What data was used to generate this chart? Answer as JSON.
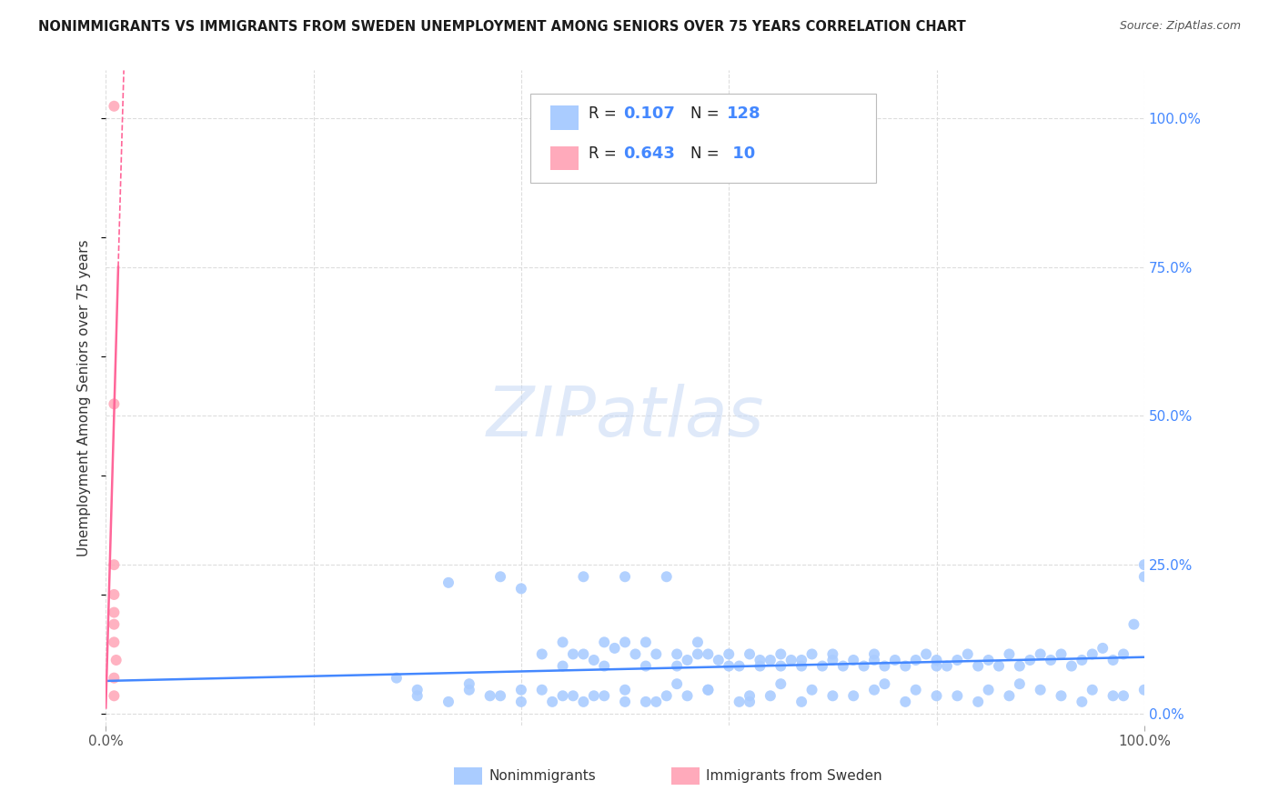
{
  "title": "NONIMMIGRANTS VS IMMIGRANTS FROM SWEDEN UNEMPLOYMENT AMONG SENIORS OVER 75 YEARS CORRELATION CHART",
  "source": "Source: ZipAtlas.com",
  "ylabel": "Unemployment Among Seniors over 75 years",
  "xlim": [
    0.0,
    1.0
  ],
  "ylim": [
    -0.02,
    1.08
  ],
  "ytick_positions_right": [
    0.0,
    0.25,
    0.5,
    0.75,
    1.0
  ],
  "ytick_labels_right": [
    "0.0%",
    "25.0%",
    "50.0%",
    "75.0%",
    "100.0%"
  ],
  "grid_color": "#dddddd",
  "nonimmigrant_color": "#aaccff",
  "immigrant_color": "#ffaabb",
  "nonimmigrant_R": 0.107,
  "nonimmigrant_N": 128,
  "immigrant_R": 0.643,
  "immigrant_N": 10,
  "trend_nonimmigrant_color": "#4488ff",
  "trend_immigrant_color": "#ff6699",
  "watermark": "ZIPatlas",
  "legend_label_nonimmigrant": "Nonimmigrants",
  "legend_label_immigrant": "Immigrants from Sweden",
  "ni_trend_slope": 0.04,
  "ni_trend_intercept": 0.055,
  "nonimmigrant_scatter_x": [
    0.28,
    0.3,
    0.33,
    0.35,
    0.38,
    0.4,
    0.42,
    0.44,
    0.44,
    0.45,
    0.46,
    0.46,
    0.47,
    0.48,
    0.48,
    0.49,
    0.5,
    0.5,
    0.51,
    0.52,
    0.52,
    0.53,
    0.54,
    0.55,
    0.55,
    0.56,
    0.57,
    0.57,
    0.58,
    0.59,
    0.6,
    0.6,
    0.61,
    0.62,
    0.63,
    0.63,
    0.64,
    0.65,
    0.65,
    0.66,
    0.67,
    0.67,
    0.68,
    0.69,
    0.7,
    0.7,
    0.71,
    0.72,
    0.73,
    0.74,
    0.74,
    0.75,
    0.76,
    0.77,
    0.78,
    0.79,
    0.8,
    0.8,
    0.81,
    0.82,
    0.83,
    0.84,
    0.85,
    0.86,
    0.87,
    0.88,
    0.89,
    0.9,
    0.91,
    0.92,
    0.93,
    0.94,
    0.95,
    0.96,
    0.97,
    0.98,
    0.99,
    1.0,
    1.0,
    0.44,
    0.46,
    0.48,
    0.5,
    0.52,
    0.3,
    0.33,
    0.35,
    0.37,
    0.4,
    0.42,
    0.45,
    0.55,
    0.58,
    0.62,
    0.65,
    0.68,
    0.72,
    0.75,
    0.78,
    0.82,
    0.85,
    0.88,
    0.92,
    0.95,
    0.98,
    1.0,
    0.53,
    0.56,
    0.62,
    0.38,
    0.4,
    0.43,
    0.47,
    0.5,
    0.54,
    0.58,
    0.61,
    0.64,
    0.67,
    0.7,
    0.74,
    0.77,
    0.8,
    0.84,
    0.87,
    0.9,
    0.94,
    0.97
  ],
  "nonimmigrant_scatter_y": [
    0.06,
    0.04,
    0.22,
    0.05,
    0.23,
    0.21,
    0.1,
    0.12,
    0.08,
    0.1,
    0.23,
    0.1,
    0.09,
    0.08,
    0.12,
    0.11,
    0.23,
    0.12,
    0.1,
    0.12,
    0.08,
    0.1,
    0.23,
    0.1,
    0.08,
    0.09,
    0.12,
    0.1,
    0.1,
    0.09,
    0.08,
    0.1,
    0.08,
    0.1,
    0.09,
    0.08,
    0.09,
    0.1,
    0.08,
    0.09,
    0.08,
    0.09,
    0.1,
    0.08,
    0.09,
    0.1,
    0.08,
    0.09,
    0.08,
    0.09,
    0.1,
    0.08,
    0.09,
    0.08,
    0.09,
    0.1,
    0.08,
    0.09,
    0.08,
    0.09,
    0.1,
    0.08,
    0.09,
    0.08,
    0.1,
    0.08,
    0.09,
    0.1,
    0.09,
    0.1,
    0.08,
    0.09,
    0.1,
    0.11,
    0.09,
    0.1,
    0.15,
    0.23,
    0.25,
    0.03,
    0.02,
    0.03,
    0.04,
    0.02,
    0.03,
    0.02,
    0.04,
    0.03,
    0.02,
    0.04,
    0.03,
    0.05,
    0.04,
    0.03,
    0.05,
    0.04,
    0.03,
    0.05,
    0.04,
    0.03,
    0.04,
    0.05,
    0.03,
    0.04,
    0.03,
    0.04,
    0.02,
    0.03,
    0.02,
    0.03,
    0.04,
    0.02,
    0.03,
    0.02,
    0.03,
    0.04,
    0.02,
    0.03,
    0.02,
    0.03,
    0.04,
    0.02,
    0.03,
    0.02,
    0.03,
    0.04,
    0.02,
    0.03
  ],
  "immigrant_scatter_x": [
    0.008,
    0.008,
    0.008,
    0.008,
    0.008,
    0.008,
    0.008,
    0.01,
    0.008,
    0.008
  ],
  "immigrant_scatter_y": [
    1.02,
    0.52,
    0.25,
    0.2,
    0.17,
    0.15,
    0.12,
    0.09,
    0.06,
    0.03
  ]
}
